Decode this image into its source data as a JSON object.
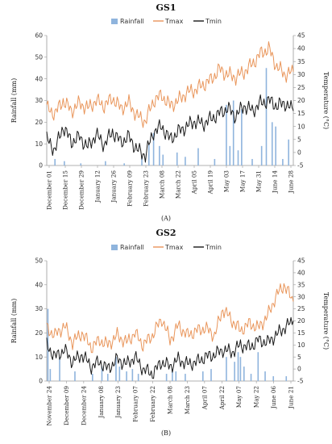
{
  "chart_data": [
    {
      "id": "gs1",
      "type": "bar+line",
      "title": "GS1",
      "panel_label": "(A)",
      "ylabel_left": "Rainfall (mm)",
      "ylabel_right": "Temperature (°C)",
      "ylim_left": [
        0,
        60
      ],
      "ylim_right": [
        -5,
        45
      ],
      "yticks_left": [
        "0",
        "10",
        "20",
        "30",
        "40",
        "50",
        "60"
      ],
      "yticks_right": [
        "-5",
        "0",
        "5",
        "10",
        "15",
        "20",
        "25",
        "30",
        "35",
        "40",
        "45"
      ],
      "legend_position": "top",
      "colors": {
        "rainfall": "#8fb4dd",
        "tmax": "#e9955a",
        "tmin": "#1a1a1a"
      },
      "x_range": [
        "2019-12-01",
        "2020-06-28"
      ],
      "xtick_labels": [
        "December 01",
        "December 15",
        "December 29",
        "January 12",
        "January 26",
        "February 09",
        "February 23",
        "March 08",
        "March 22",
        "April 05",
        "April 19",
        "May 03",
        "May 17",
        "May 31",
        "June 14",
        "June 28"
      ],
      "series": [
        {
          "name": "Rainfall",
          "kind": "bar",
          "points": [
            [
              "2019-12-08",
              3
            ],
            [
              "2019-12-16",
              2
            ],
            [
              "2019-12-30",
              1
            ],
            [
              "2020-01-20",
              2
            ],
            [
              "2020-02-05",
              1
            ],
            [
              "2020-02-20",
              4
            ],
            [
              "2020-02-26",
              10
            ],
            [
              "2020-03-01",
              15
            ],
            [
              "2020-03-06",
              9
            ],
            [
              "2020-03-09",
              5
            ],
            [
              "2020-03-21",
              6
            ],
            [
              "2020-03-28",
              4
            ],
            [
              "2020-04-08",
              8
            ],
            [
              "2020-04-22",
              3
            ],
            [
              "2020-05-02",
              28
            ],
            [
              "2020-05-05",
              9
            ],
            [
              "2020-05-08",
              30
            ],
            [
              "2020-05-12",
              7
            ],
            [
              "2020-05-15",
              26
            ],
            [
              "2020-05-24",
              3
            ],
            [
              "2020-06-01",
              9
            ],
            [
              "2020-06-05",
              45
            ],
            [
              "2020-06-10",
              20
            ],
            [
              "2020-06-13",
              18
            ],
            [
              "2020-06-19",
              3
            ],
            [
              "2020-06-24",
              12
            ]
          ]
        },
        {
          "name": "Tmax",
          "kind": "line",
          "points": [
            [
              "2019-12-01",
              17
            ],
            [
              "2019-12-08",
              15
            ],
            [
              "2019-12-15",
              20
            ],
            [
              "2019-12-22",
              16
            ],
            [
              "2019-12-29",
              19
            ],
            [
              "2020-01-05",
              17
            ],
            [
              "2020-01-12",
              20
            ],
            [
              "2020-01-19",
              18
            ],
            [
              "2020-01-26",
              21
            ],
            [
              "2020-02-02",
              17
            ],
            [
              "2020-02-09",
              19
            ],
            [
              "2020-02-16",
              14
            ],
            [
              "2020-02-23",
              12
            ],
            [
              "2020-03-01",
              20
            ],
            [
              "2020-03-08",
              22
            ],
            [
              "2020-03-15",
              18
            ],
            [
              "2020-03-22",
              20
            ],
            [
              "2020-03-29",
              23
            ],
            [
              "2020-04-05",
              24
            ],
            [
              "2020-04-12",
              26
            ],
            [
              "2020-04-19",
              28
            ],
            [
              "2020-04-26",
              32
            ],
            [
              "2020-05-03",
              30
            ],
            [
              "2020-05-10",
              29
            ],
            [
              "2020-05-17",
              31
            ],
            [
              "2020-05-24",
              34
            ],
            [
              "2020-05-31",
              38
            ],
            [
              "2020-06-07",
              40
            ],
            [
              "2020-06-14",
              33
            ],
            [
              "2020-06-21",
              30
            ],
            [
              "2020-06-28",
              31
            ]
          ]
        },
        {
          "name": "Tmin",
          "kind": "line",
          "points": [
            [
              "2019-12-01",
              5
            ],
            [
              "2019-12-08",
              1
            ],
            [
              "2019-12-15",
              10
            ],
            [
              "2019-12-22",
              4
            ],
            [
              "2019-12-29",
              6
            ],
            [
              "2020-01-05",
              2
            ],
            [
              "2020-01-12",
              7
            ],
            [
              "2020-01-19",
              3
            ],
            [
              "2020-01-26",
              8
            ],
            [
              "2020-02-02",
              4
            ],
            [
              "2020-02-09",
              6
            ],
            [
              "2020-02-16",
              1
            ],
            [
              "2020-02-23",
              -1
            ],
            [
              "2020-03-01",
              8
            ],
            [
              "2020-03-08",
              10
            ],
            [
              "2020-03-15",
              5
            ],
            [
              "2020-03-22",
              8
            ],
            [
              "2020-03-29",
              10
            ],
            [
              "2020-04-05",
              12
            ],
            [
              "2020-04-12",
              11
            ],
            [
              "2020-04-19",
              13
            ],
            [
              "2020-04-26",
              15
            ],
            [
              "2020-05-03",
              17
            ],
            [
              "2020-05-10",
              14
            ],
            [
              "2020-05-17",
              18
            ],
            [
              "2020-05-24",
              16
            ],
            [
              "2020-05-31",
              19
            ],
            [
              "2020-06-07",
              20
            ],
            [
              "2020-06-14",
              18
            ],
            [
              "2020-06-21",
              19
            ],
            [
              "2020-06-28",
              16
            ]
          ]
        }
      ]
    },
    {
      "id": "gs2",
      "type": "bar+line",
      "title": "GS2",
      "panel_label": "(B)",
      "ylabel_left": "Rainfall (mm)",
      "ylabel_right": "Temperature (°C)",
      "ylim_left": [
        0,
        50
      ],
      "ylim_right": [
        -5,
        45
      ],
      "yticks_left": [
        "0",
        "10",
        "20",
        "30",
        "40",
        "50"
      ],
      "yticks_right": [
        "-5",
        "0",
        "5",
        "10",
        "15",
        "20",
        "25",
        "30",
        "35",
        "40",
        "45"
      ],
      "legend_position": "top",
      "colors": {
        "rainfall": "#8fb4dd",
        "tmax": "#e9955a",
        "tmin": "#1a1a1a"
      },
      "x_range": [
        "2019-11-24",
        "2020-06-21"
      ],
      "xtick_labels": [
        "November 24",
        "December 09",
        "December 24",
        "January 08",
        "January 23",
        "February 07",
        "February 22",
        "March 08",
        "March 23",
        "April 07",
        "April 22",
        "May 07",
        "May 22",
        "June 06",
        "June 21"
      ],
      "series": [
        {
          "name": "Rainfall",
          "kind": "bar",
          "points": [
            [
              "2019-11-25",
              30
            ],
            [
              "2019-11-27",
              5
            ],
            [
              "2019-12-05",
              10
            ],
            [
              "2019-12-18",
              4
            ],
            [
              "2020-01-02",
              3
            ],
            [
              "2020-01-10",
              6
            ],
            [
              "2020-01-15",
              3
            ],
            [
              "2020-01-22",
              10
            ],
            [
              "2020-01-25",
              6
            ],
            [
              "2020-01-31",
              4
            ],
            [
              "2020-02-05",
              5
            ],
            [
              "2020-02-10",
              3
            ],
            [
              "2020-03-05",
              3
            ],
            [
              "2020-03-10",
              5
            ],
            [
              "2020-03-13",
              4
            ],
            [
              "2020-03-21",
              3
            ],
            [
              "2020-04-05",
              4
            ],
            [
              "2020-04-12",
              5
            ],
            [
              "2020-04-25",
              10
            ],
            [
              "2020-05-02",
              8
            ],
            [
              "2020-05-05",
              12
            ],
            [
              "2020-05-07",
              10
            ],
            [
              "2020-05-10",
              6
            ],
            [
              "2020-05-16",
              3
            ],
            [
              "2020-05-22",
              12
            ],
            [
              "2020-05-28",
              4
            ],
            [
              "2020-06-04",
              2
            ],
            [
              "2020-06-15",
              2
            ]
          ]
        },
        {
          "name": "Tmax",
          "kind": "line",
          "points": [
            [
              "2019-11-24",
              17
            ],
            [
              "2019-12-01",
              14
            ],
            [
              "2019-12-09",
              18
            ],
            [
              "2019-12-16",
              11
            ],
            [
              "2019-12-24",
              15
            ],
            [
              "2020-01-01",
              9
            ],
            [
              "2020-01-08",
              12
            ],
            [
              "2020-01-15",
              10
            ],
            [
              "2020-01-23",
              14
            ],
            [
              "2020-01-31",
              11
            ],
            [
              "2020-02-07",
              15
            ],
            [
              "2020-02-14",
              10
            ],
            [
              "2020-02-22",
              14
            ],
            [
              "2020-03-01",
              21
            ],
            [
              "2020-03-08",
              12
            ],
            [
              "2020-03-15",
              18
            ],
            [
              "2020-03-23",
              14
            ],
            [
              "2020-03-31",
              16
            ],
            [
              "2020-04-07",
              17
            ],
            [
              "2020-04-15",
              14
            ],
            [
              "2020-04-22",
              25
            ],
            [
              "2020-04-30",
              20
            ],
            [
              "2020-05-07",
              16
            ],
            [
              "2020-05-15",
              19
            ],
            [
              "2020-05-22",
              17
            ],
            [
              "2020-05-30",
              22
            ],
            [
              "2020-06-06",
              30
            ],
            [
              "2020-06-13",
              35
            ],
            [
              "2020-06-21",
              28
            ]
          ]
        },
        {
          "name": "Tmin",
          "kind": "line",
          "points": [
            [
              "2019-11-24",
              10
            ],
            [
              "2019-12-01",
              5
            ],
            [
              "2019-12-09",
              8
            ],
            [
              "2019-12-16",
              3
            ],
            [
              "2019-12-24",
              6
            ],
            [
              "2020-01-01",
              1
            ],
            [
              "2020-01-08",
              3
            ],
            [
              "2020-01-15",
              0
            ],
            [
              "2020-01-23",
              4
            ],
            [
              "2020-01-31",
              2
            ],
            [
              "2020-02-07",
              5
            ],
            [
              "2020-02-14",
              0
            ],
            [
              "2020-02-22",
              -2
            ],
            [
              "2020-03-01",
              3
            ],
            [
              "2020-03-08",
              1
            ],
            [
              "2020-03-15",
              4
            ],
            [
              "2020-03-23",
              2
            ],
            [
              "2020-03-31",
              3
            ],
            [
              "2020-04-07",
              5
            ],
            [
              "2020-04-15",
              6
            ],
            [
              "2020-04-22",
              8
            ],
            [
              "2020-04-30",
              7
            ],
            [
              "2020-05-07",
              10
            ],
            [
              "2020-05-15",
              9
            ],
            [
              "2020-05-22",
              12
            ],
            [
              "2020-05-30",
              11
            ],
            [
              "2020-06-06",
              14
            ],
            [
              "2020-06-13",
              17
            ],
            [
              "2020-06-21",
              20
            ]
          ]
        }
      ]
    }
  ]
}
